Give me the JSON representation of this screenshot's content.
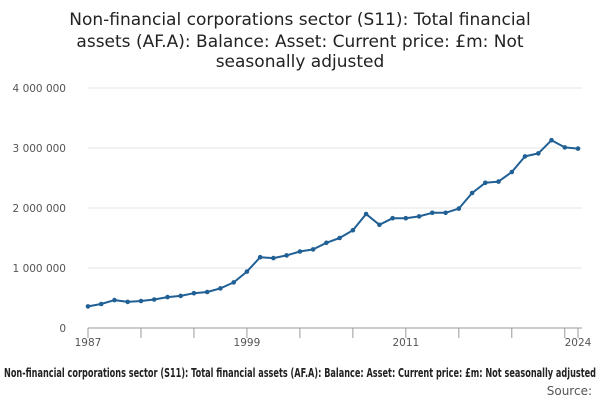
{
  "chart_data": {
    "type": "line",
    "title_lines": [
      "Non-financial corporations sector (S11): Total financial",
      "assets (AF.A): Balance: Asset: Current price: £m: Not",
      "seasonally adjusted"
    ],
    "xlabel": "",
    "ylabel": "",
    "ylim": [
      0,
      4000000
    ],
    "y_ticks": [
      0,
      1000000,
      2000000,
      3000000,
      4000000
    ],
    "y_tick_labels": [
      "0",
      "1 000 000",
      "2 000 000",
      "3 000 000",
      "4 000 000"
    ],
    "x_range": [
      1987,
      2024
    ],
    "x_tick_labels": [
      "1987",
      "1999",
      "2011",
      "2024"
    ],
    "x_tick_values": [
      1987,
      1999,
      2011,
      2024
    ],
    "grid": true,
    "legend_text": "Non-financial corporations sector (S11): Total financial assets (AF.A): Balance: Asset: Current price: £m: Not seasonally adjusted",
    "source_label": "Source:",
    "color": "#206095",
    "series": [
      {
        "x": [
          1987,
          1988,
          1989,
          1990,
          1991,
          1992,
          1993,
          1994,
          1995,
          1996,
          1997,
          1998,
          1999,
          2000,
          2001,
          2002,
          2003,
          2004,
          2005,
          2006,
          2007,
          2008,
          2009,
          2010,
          2011,
          2012,
          2013,
          2014,
          2015,
          2016,
          2017,
          2018,
          2019,
          2020,
          2021,
          2022,
          2023,
          2024
        ],
        "values": [
          360000,
          400000,
          465000,
          435000,
          450000,
          475000,
          515000,
          535000,
          580000,
          600000,
          660000,
          760000,
          940000,
          1180000,
          1165000,
          1210000,
          1275000,
          1310000,
          1420000,
          1500000,
          1630000,
          1900000,
          1720000,
          1830000,
          1830000,
          1860000,
          1920000,
          1920000,
          1990000,
          2250000,
          2420000,
          2440000,
          2600000,
          2860000,
          2910000,
          3130000,
          3010000,
          2990000
        ]
      }
    ]
  }
}
